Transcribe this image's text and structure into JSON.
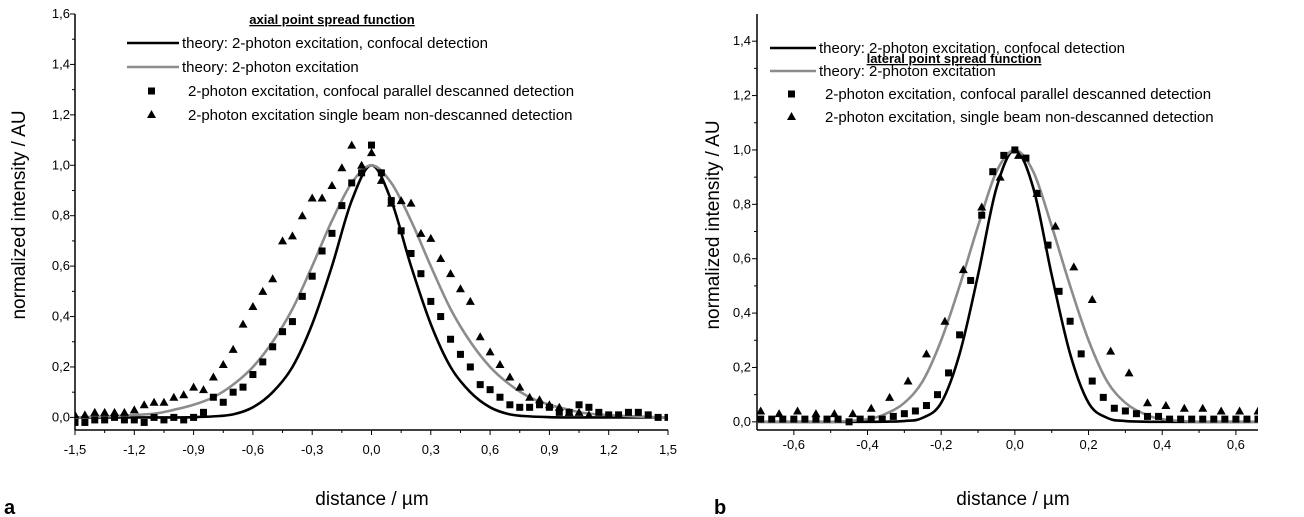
{
  "chart_data": [
    {
      "type": "scatter",
      "panel_label": "a",
      "title": "axial point spread function",
      "xlabel": "distance / µm",
      "ylabel": "normalized intensity / AU",
      "xlim": [
        -1.5,
        1.5
      ],
      "ylim": [
        -0.05,
        1.6
      ],
      "xticks": [
        -1.5,
        -1.2,
        -0.9,
        -0.6,
        -0.3,
        0.0,
        0.3,
        0.6,
        0.9,
        1.2,
        1.5
      ],
      "xtick_labels": [
        "-1,5",
        "-1,2",
        "-0,9",
        "-0,6",
        "-0,3",
        "0,0",
        "0,3",
        "0,6",
        "0,9",
        "1,2",
        "1,5"
      ],
      "yticks": [
        0.0,
        0.2,
        0.4,
        0.6,
        0.8,
        1.0,
        1.2,
        1.4,
        1.6
      ],
      "ytick_labels": [
        "0,0",
        "0,2",
        "0,4",
        "0,6",
        "0,8",
        "1,0",
        "1,2",
        "1,4",
        "1,6"
      ],
      "grid": false,
      "legend_position": "top",
      "series": [
        {
          "name": "theory: 2-photon excitation, confocal detection",
          "kind": "line",
          "color": "#000000",
          "x": [
            -1.5,
            -1.2,
            -1.0,
            -0.9,
            -0.8,
            -0.7,
            -0.6,
            -0.5,
            -0.4,
            -0.3,
            -0.2,
            -0.1,
            0.0,
            0.1,
            0.2,
            0.3,
            0.4,
            0.5,
            0.6,
            0.7,
            0.8,
            0.9,
            1.0,
            1.2,
            1.5
          ],
          "y": [
            0.0,
            0.0,
            0.0,
            0.001,
            0.004,
            0.012,
            0.04,
            0.1,
            0.2,
            0.37,
            0.6,
            0.86,
            1.0,
            0.86,
            0.6,
            0.37,
            0.2,
            0.1,
            0.04,
            0.012,
            0.004,
            0.001,
            0.0,
            0.0,
            0.0
          ]
        },
        {
          "name": "theory: 2-photon excitation",
          "kind": "line",
          "color": "#8c8c8c",
          "x": [
            -1.5,
            -1.3,
            -1.1,
            -1.0,
            -0.9,
            -0.8,
            -0.7,
            -0.6,
            -0.5,
            -0.4,
            -0.3,
            -0.2,
            -0.1,
            0.0,
            0.1,
            0.2,
            0.3,
            0.4,
            0.5,
            0.6,
            0.7,
            0.8,
            0.9,
            1.0,
            1.1,
            1.3,
            1.5
          ],
          "y": [
            0.0,
            0.005,
            0.015,
            0.03,
            0.05,
            0.08,
            0.13,
            0.2,
            0.3,
            0.43,
            0.6,
            0.78,
            0.93,
            1.0,
            0.93,
            0.78,
            0.6,
            0.43,
            0.3,
            0.2,
            0.13,
            0.08,
            0.05,
            0.03,
            0.015,
            0.005,
            0.0
          ]
        },
        {
          "name": "2-photon excitation, confocal parallel descanned detection",
          "kind": "scatter",
          "marker": "square",
          "color": "#000000",
          "x": [
            -1.5,
            -1.45,
            -1.4,
            -1.35,
            -1.3,
            -1.25,
            -1.2,
            -1.15,
            -1.1,
            -1.05,
            -1.0,
            -0.95,
            -0.9,
            -0.85,
            -0.8,
            -0.75,
            -0.7,
            -0.65,
            -0.6,
            -0.55,
            -0.5,
            -0.45,
            -0.4,
            -0.35,
            -0.3,
            -0.25,
            -0.2,
            -0.15,
            -0.1,
            -0.05,
            0.0,
            0.05,
            0.1,
            0.15,
            0.2,
            0.25,
            0.3,
            0.35,
            0.4,
            0.45,
            0.5,
            0.55,
            0.6,
            0.65,
            0.7,
            0.75,
            0.8,
            0.85,
            0.9,
            0.95,
            1.0,
            1.05,
            1.1,
            1.15,
            1.2,
            1.25,
            1.3,
            1.35,
            1.4,
            1.45,
            1.5
          ],
          "y": [
            -0.02,
            -0.02,
            -0.01,
            -0.01,
            0.0,
            -0.01,
            -0.01,
            -0.02,
            0.0,
            -0.01,
            0.0,
            -0.01,
            0.0,
            0.02,
            0.08,
            0.06,
            0.1,
            0.12,
            0.17,
            0.22,
            0.28,
            0.34,
            0.38,
            0.48,
            0.56,
            0.66,
            0.73,
            0.84,
            0.93,
            0.97,
            1.08,
            0.97,
            0.86,
            0.74,
            0.65,
            0.57,
            0.46,
            0.4,
            0.31,
            0.25,
            0.2,
            0.13,
            0.11,
            0.08,
            0.05,
            0.04,
            0.04,
            0.05,
            0.04,
            0.02,
            0.02,
            0.05,
            0.04,
            0.02,
            0.01,
            0.01,
            0.02,
            0.02,
            0.01,
            0.0,
            0.0
          ]
        },
        {
          "name": "2-photon excitation single beam non-descanned detection",
          "kind": "scatter",
          "marker": "triangle",
          "color": "#000000",
          "x": [
            -1.5,
            -1.45,
            -1.4,
            -1.35,
            -1.3,
            -1.25,
            -1.2,
            -1.15,
            -1.1,
            -1.05,
            -1.0,
            -0.95,
            -0.9,
            -0.85,
            -0.8,
            -0.75,
            -0.7,
            -0.65,
            -0.6,
            -0.55,
            -0.5,
            -0.45,
            -0.4,
            -0.35,
            -0.3,
            -0.25,
            -0.2,
            -0.15,
            -0.1,
            -0.05,
            0.0,
            0.05,
            0.1,
            0.15,
            0.2,
            0.25,
            0.3,
            0.35,
            0.4,
            0.45,
            0.5,
            0.55,
            0.6,
            0.65,
            0.7,
            0.75,
            0.8,
            0.85,
            0.9,
            0.95,
            1.0,
            1.05,
            1.1
          ],
          "y": [
            0.01,
            0.01,
            0.02,
            0.02,
            0.02,
            0.02,
            0.03,
            0.05,
            0.06,
            0.06,
            0.08,
            0.09,
            0.12,
            0.11,
            0.16,
            0.21,
            0.27,
            0.37,
            0.44,
            0.5,
            0.55,
            0.7,
            0.72,
            0.8,
            0.87,
            0.87,
            0.92,
            0.99,
            1.08,
            1.0,
            1.05,
            0.94,
            0.85,
            0.86,
            0.85,
            0.73,
            0.71,
            0.63,
            0.57,
            0.51,
            0.46,
            0.32,
            0.26,
            0.21,
            0.16,
            0.12,
            0.08,
            0.07,
            0.05,
            0.04,
            0.02,
            0.02,
            0.01
          ]
        }
      ]
    },
    {
      "type": "scatter",
      "panel_label": "b",
      "title": "lateral point spread function",
      "xlabel": "distance / µm",
      "ylabel": "normalized intensity / AU",
      "xlim": [
        -0.7,
        0.66
      ],
      "ylim": [
        -0.03,
        1.5
      ],
      "xticks": [
        -0.6,
        -0.4,
        -0.2,
        0.0,
        0.2,
        0.4,
        0.6
      ],
      "xtick_labels": [
        "-0,6",
        "-0,4",
        "-0,2",
        "0,0",
        "0,2",
        "0,4",
        "0,6"
      ],
      "yticks": [
        0.0,
        0.2,
        0.4,
        0.6,
        0.8,
        1.0,
        1.2,
        1.4
      ],
      "ytick_labels": [
        "0,0",
        "0,2",
        "0,4",
        "0,6",
        "0,8",
        "1,0",
        "1,2",
        "1,4"
      ],
      "grid": false,
      "legend_position": "top",
      "series": [
        {
          "name": "theory: 2-photon excitation, confocal detection",
          "kind": "line",
          "color": "#000000",
          "x": [
            -0.7,
            -0.4,
            -0.3,
            -0.25,
            -0.2,
            -0.15,
            -0.1,
            -0.05,
            0.0,
            0.05,
            0.1,
            0.15,
            0.2,
            0.25,
            0.3,
            0.4,
            0.66
          ],
          "y": [
            0.0,
            0.0,
            0.003,
            0.015,
            0.07,
            0.25,
            0.54,
            0.86,
            1.0,
            0.86,
            0.54,
            0.25,
            0.07,
            0.015,
            0.003,
            0.0,
            0.0
          ]
        },
        {
          "name": "theory: 2-photon excitation",
          "kind": "line",
          "color": "#8c8c8c",
          "x": [
            -0.7,
            -0.5,
            -0.4,
            -0.35,
            -0.3,
            -0.25,
            -0.2,
            -0.15,
            -0.1,
            -0.05,
            0.0,
            0.05,
            0.1,
            0.15,
            0.2,
            0.25,
            0.3,
            0.35,
            0.4,
            0.5,
            0.66
          ],
          "y": [
            0.0,
            0.0,
            0.01,
            0.03,
            0.07,
            0.15,
            0.3,
            0.5,
            0.72,
            0.92,
            1.0,
            0.92,
            0.72,
            0.5,
            0.3,
            0.15,
            0.07,
            0.03,
            0.01,
            0.0,
            0.0
          ]
        },
        {
          "name": "2-photon excitation, confocal parallel descanned detection",
          "kind": "scatter",
          "marker": "square",
          "color": "#000000",
          "x": [
            -0.69,
            -0.66,
            -0.63,
            -0.6,
            -0.57,
            -0.54,
            -0.51,
            -0.48,
            -0.45,
            -0.42,
            -0.39,
            -0.36,
            -0.33,
            -0.3,
            -0.27,
            -0.24,
            -0.21,
            -0.18,
            -0.15,
            -0.12,
            -0.09,
            -0.06,
            -0.03,
            0.0,
            0.03,
            0.06,
            0.09,
            0.12,
            0.15,
            0.18,
            0.21,
            0.24,
            0.27,
            0.3,
            0.33,
            0.36,
            0.39,
            0.42,
            0.45,
            0.48,
            0.51,
            0.54,
            0.57,
            0.6,
            0.63,
            0.66
          ],
          "y": [
            0.01,
            0.01,
            0.01,
            0.01,
            0.01,
            0.01,
            0.01,
            0.01,
            0.0,
            0.01,
            0.01,
            0.01,
            0.02,
            0.03,
            0.04,
            0.06,
            0.1,
            0.18,
            0.32,
            0.52,
            0.76,
            0.92,
            0.98,
            1.0,
            0.97,
            0.84,
            0.65,
            0.48,
            0.37,
            0.25,
            0.15,
            0.09,
            0.05,
            0.04,
            0.03,
            0.02,
            0.02,
            0.01,
            0.01,
            0.01,
            0.01,
            0.01,
            0.01,
            0.01,
            0.01,
            0.01
          ]
        },
        {
          "name": "2-photon excitation, single beam non-descanned detection",
          "kind": "scatter",
          "marker": "triangle",
          "color": "#000000",
          "x": [
            -0.69,
            -0.64,
            -0.59,
            -0.54,
            -0.49,
            -0.44,
            -0.39,
            -0.34,
            -0.29,
            -0.24,
            -0.19,
            -0.14,
            -0.09,
            -0.04,
            0.01,
            0.06,
            0.11,
            0.16,
            0.21,
            0.26,
            0.31,
            0.36,
            0.41,
            0.46,
            0.51,
            0.56,
            0.61,
            0.66
          ],
          "y": [
            0.04,
            0.03,
            0.04,
            0.03,
            0.03,
            0.03,
            0.05,
            0.09,
            0.15,
            0.25,
            0.37,
            0.56,
            0.79,
            0.9,
            0.98,
            0.84,
            0.72,
            0.57,
            0.45,
            0.26,
            0.18,
            0.07,
            0.06,
            0.05,
            0.05,
            0.04,
            0.04,
            0.04
          ]
        }
      ]
    }
  ]
}
